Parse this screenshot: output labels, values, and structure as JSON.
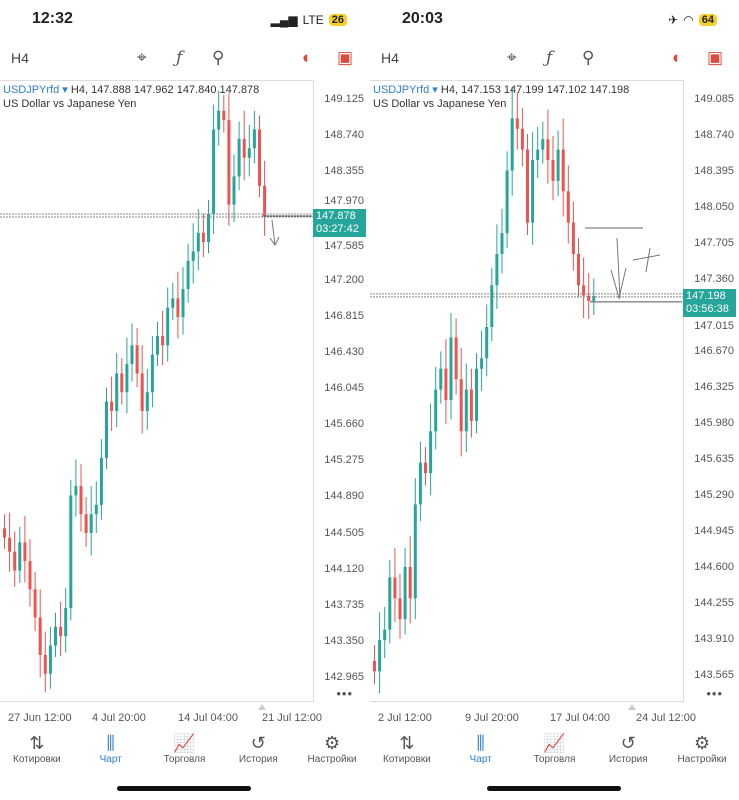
{
  "screens": [
    {
      "status": {
        "time": "12:32",
        "network": "LTE",
        "battery": "26"
      },
      "toolbar": {
        "timeframe": "H4"
      },
      "chart": {
        "symbol": "USDJPYrfd",
        "info": "H4, 147.888 147.962 147.840 147.878",
        "description": "US Dollar vs Japanese Yen",
        "price": "147.878",
        "countdown": "03:27:42",
        "y_ticks": [
          "149.125",
          "148.740",
          "148.355",
          "147.970",
          "147.585",
          "147.200",
          "146.815",
          "146.430",
          "146.045",
          "145.660",
          "145.275",
          "144.890",
          "144.505",
          "144.120",
          "143.735",
          "143.350",
          "142.965"
        ],
        "dates": [
          "27 Jun 12:00",
          "4 Jul 20:00",
          "14 Jul 04:00",
          "21 Jul 12:00"
        ]
      },
      "tabs": [
        "Котировки",
        "Чарт",
        "Торговля",
        "История",
        "Настройки"
      ]
    },
    {
      "status": {
        "time": "20:03",
        "battery": "64"
      },
      "toolbar": {
        "timeframe": "H4"
      },
      "chart": {
        "symbol": "USDJPYrfd",
        "info": "H4, 147.153 147.199 147.102 147.198",
        "description": "US Dollar vs Japanese Yen",
        "price": "147.198",
        "countdown": "03:56:38",
        "y_ticks": [
          "149.085",
          "148.740",
          "148.395",
          "148.050",
          "147.705",
          "147.360",
          "147.015",
          "146.670",
          "146.325",
          "145.980",
          "145.635",
          "145.290",
          "144.945",
          "144.600",
          "144.255",
          "143.910",
          "143.565"
        ],
        "dates": [
          "2 Jul 12:00",
          "9 Jul 20:00",
          "17 Jul 04:00",
          "24 Jul 12:00"
        ]
      },
      "tabs": [
        "Котировки",
        "Чарт",
        "Торговля",
        "История",
        "Настройки"
      ]
    }
  ],
  "chart_data": [
    {
      "type": "candlestick",
      "title": "USDJPYrfd H4",
      "ylim": [
        142.965,
        149.125
      ],
      "closes": [
        144.45,
        144.3,
        144.1,
        144.4,
        144.2,
        143.9,
        143.6,
        143.2,
        143.0,
        143.3,
        143.5,
        143.4,
        143.7,
        144.9,
        145.0,
        144.7,
        144.5,
        144.7,
        144.8,
        145.3,
        145.9,
        145.8,
        146.2,
        146.0,
        146.3,
        146.5,
        146.2,
        145.8,
        146.0,
        146.4,
        146.6,
        146.5,
        146.9,
        147.0,
        146.8,
        147.1,
        147.4,
        147.5,
        147.7,
        147.6,
        147.9,
        148.8,
        149.0,
        148.9,
        148.0,
        148.3,
        148.7,
        148.5,
        148.6,
        148.8,
        148.2,
        147.878
      ]
    },
    {
      "type": "candlestick",
      "title": "USDJPYrfd H4",
      "ylim": [
        143.565,
        149.085
      ],
      "closes": [
        143.6,
        143.9,
        144.0,
        144.5,
        144.3,
        144.1,
        144.6,
        144.3,
        145.2,
        145.6,
        145.5,
        145.9,
        146.3,
        146.5,
        146.2,
        146.8,
        146.4,
        145.9,
        146.3,
        146.0,
        146.5,
        146.6,
        146.9,
        147.3,
        147.6,
        147.8,
        148.4,
        148.9,
        148.8,
        148.6,
        147.9,
        148.5,
        148.6,
        148.7,
        148.5,
        148.3,
        148.6,
        148.2,
        147.9,
        147.6,
        147.3,
        147.2,
        147.15,
        147.198
      ]
    }
  ],
  "colors": {
    "up": "#26a69a",
    "down": "#ef5350",
    "accent": "#2a7fd4"
  }
}
